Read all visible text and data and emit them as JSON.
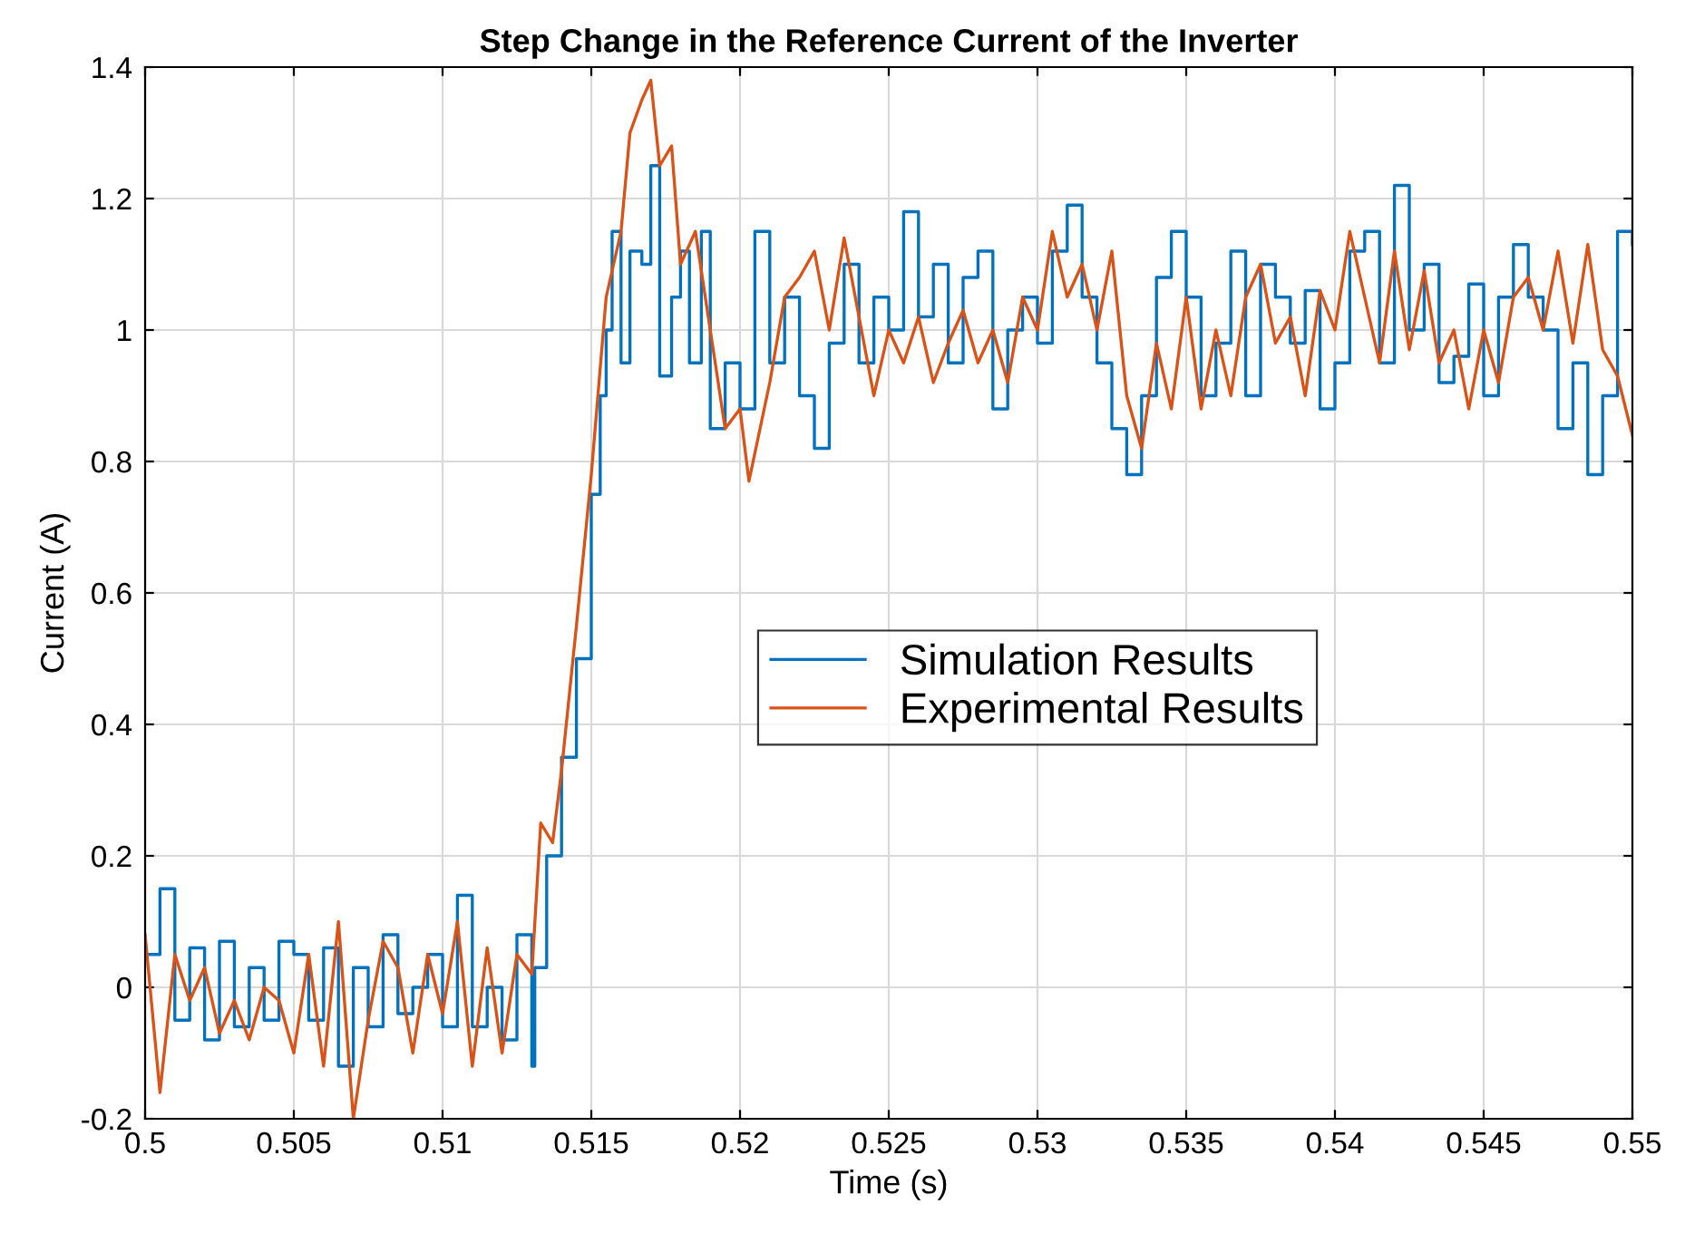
{
  "chart_data": {
    "type": "line",
    "title": "Step Change in the Reference Current of the Inverter",
    "xlabel": "Time (s)",
    "ylabel": "Current (A)",
    "xlim": [
      0.5,
      0.55
    ],
    "ylim": [
      -0.2,
      1.4
    ],
    "xticks": [
      0.5,
      0.505,
      0.51,
      0.515,
      0.52,
      0.525,
      0.53,
      0.535,
      0.54,
      0.545,
      0.55
    ],
    "yticks": [
      -0.2,
      0,
      0.2,
      0.4,
      0.6,
      0.8,
      1,
      1.2,
      1.4
    ],
    "grid": true,
    "legend": "right",
    "marker": "none",
    "line_style": "solid",
    "series": [
      {
        "name": "Simulation Results",
        "type": "step",
        "color": "#0072bd",
        "x": [
          0.5,
          0.5005,
          0.501,
          0.5015,
          0.502,
          0.5025,
          0.503,
          0.5035,
          0.504,
          0.5045,
          0.505,
          0.5055,
          0.506,
          0.5065,
          0.507,
          0.5075,
          0.508,
          0.5085,
          0.509,
          0.5095,
          0.51,
          0.5105,
          0.511,
          0.5115,
          0.512,
          0.5125,
          0.513,
          0.5131,
          0.5135,
          0.514,
          0.5145,
          0.515,
          0.5153,
          0.5155,
          0.5157,
          0.516,
          0.5163,
          0.5167,
          0.517,
          0.5173,
          0.5177,
          0.518,
          0.5183,
          0.5187,
          0.519,
          0.5195,
          0.52,
          0.5205,
          0.521,
          0.5215,
          0.522,
          0.5225,
          0.523,
          0.5235,
          0.524,
          0.5245,
          0.525,
          0.5255,
          0.526,
          0.5265,
          0.527,
          0.5275,
          0.528,
          0.5285,
          0.529,
          0.5295,
          0.53,
          0.5305,
          0.531,
          0.5315,
          0.532,
          0.5325,
          0.533,
          0.5335,
          0.534,
          0.5345,
          0.535,
          0.5355,
          0.536,
          0.5365,
          0.537,
          0.5375,
          0.538,
          0.5385,
          0.539,
          0.5395,
          0.54,
          0.5405,
          0.541,
          0.5415,
          0.542,
          0.5425,
          0.543,
          0.5435,
          0.544,
          0.5445,
          0.545,
          0.5455,
          0.546,
          0.5465,
          0.547,
          0.5475,
          0.548,
          0.5485,
          0.549,
          0.5495,
          0.55
        ],
        "values": [
          0.05,
          0.15,
          -0.05,
          0.06,
          -0.08,
          0.07,
          -0.06,
          0.03,
          -0.05,
          0.07,
          0.05,
          -0.05,
          0.06,
          -0.12,
          0.03,
          -0.06,
          0.08,
          -0.04,
          0.0,
          0.05,
          -0.06,
          0.14,
          -0.06,
          0.0,
          -0.08,
          0.08,
          -0.12,
          0.03,
          0.2,
          0.35,
          0.5,
          0.75,
          0.9,
          1.0,
          1.15,
          0.95,
          1.12,
          1.1,
          1.25,
          0.93,
          1.05,
          1.12,
          0.95,
          1.15,
          0.85,
          0.95,
          0.88,
          1.15,
          0.95,
          1.05,
          0.9,
          0.82,
          0.98,
          1.1,
          0.95,
          1.05,
          1.0,
          1.18,
          1.02,
          1.1,
          0.95,
          1.08,
          1.12,
          0.88,
          1.0,
          1.05,
          0.98,
          1.12,
          1.19,
          1.05,
          0.95,
          0.85,
          0.78,
          0.9,
          1.08,
          1.15,
          1.05,
          0.9,
          0.98,
          1.12,
          0.9,
          1.1,
          1.05,
          0.98,
          1.06,
          0.88,
          0.95,
          1.12,
          1.15,
          0.95,
          1.22,
          1.0,
          1.1,
          0.92,
          0.96,
          1.07,
          0.9,
          1.05,
          1.13,
          1.05,
          1.0,
          0.85,
          0.95,
          0.78,
          0.9,
          1.15,
          1.13
        ]
      },
      {
        "name": "Experimental Results",
        "color": "#d95319",
        "x": [
          0.5,
          0.5005,
          0.501,
          0.5015,
          0.502,
          0.5025,
          0.503,
          0.5035,
          0.504,
          0.5045,
          0.505,
          0.5055,
          0.506,
          0.5065,
          0.507,
          0.5075,
          0.508,
          0.5085,
          0.509,
          0.5095,
          0.51,
          0.5105,
          0.511,
          0.5115,
          0.512,
          0.5125,
          0.513,
          0.5133,
          0.5137,
          0.514,
          0.5145,
          0.515,
          0.5155,
          0.516,
          0.5163,
          0.5167,
          0.517,
          0.5173,
          0.5177,
          0.518,
          0.5185,
          0.519,
          0.5195,
          0.52,
          0.5203,
          0.521,
          0.5215,
          0.522,
          0.5225,
          0.523,
          0.5235,
          0.524,
          0.5245,
          0.525,
          0.5255,
          0.526,
          0.5265,
          0.527,
          0.5275,
          0.528,
          0.5285,
          0.529,
          0.5295,
          0.53,
          0.5305,
          0.531,
          0.5315,
          0.532,
          0.5325,
          0.533,
          0.5335,
          0.534,
          0.5345,
          0.535,
          0.5355,
          0.536,
          0.5365,
          0.537,
          0.5375,
          0.538,
          0.5385,
          0.539,
          0.5395,
          0.54,
          0.5405,
          0.541,
          0.5415,
          0.542,
          0.5425,
          0.543,
          0.5435,
          0.544,
          0.5445,
          0.545,
          0.5455,
          0.546,
          0.5465,
          0.547,
          0.5475,
          0.548,
          0.5485,
          0.549,
          0.5495,
          0.55
        ],
        "values": [
          0.08,
          -0.16,
          0.05,
          -0.02,
          0.03,
          -0.07,
          -0.02,
          -0.08,
          0.0,
          -0.02,
          -0.1,
          0.05,
          -0.12,
          0.1,
          -0.2,
          -0.05,
          0.07,
          0.03,
          -0.1,
          0.05,
          -0.04,
          0.1,
          -0.12,
          0.06,
          -0.1,
          0.05,
          0.02,
          0.25,
          0.22,
          0.33,
          0.55,
          0.78,
          1.05,
          1.15,
          1.3,
          1.35,
          1.38,
          1.25,
          1.28,
          1.1,
          1.15,
          1.0,
          0.85,
          0.88,
          0.77,
          0.92,
          1.05,
          1.08,
          1.12,
          1.0,
          1.14,
          1.02,
          0.9,
          1.0,
          0.95,
          1.02,
          0.92,
          0.98,
          1.03,
          0.95,
          1.0,
          0.92,
          1.05,
          1.0,
          1.15,
          1.05,
          1.1,
          1.0,
          1.12,
          0.9,
          0.82,
          0.98,
          0.88,
          1.05,
          0.88,
          1.0,
          0.9,
          1.05,
          1.1,
          0.98,
          1.02,
          0.9,
          1.06,
          1.0,
          1.15,
          1.05,
          0.95,
          1.12,
          0.97,
          1.09,
          0.95,
          1.0,
          0.88,
          1.0,
          0.92,
          1.05,
          1.08,
          1.0,
          1.12,
          0.98,
          1.13,
          0.97,
          0.93,
          0.84
        ]
      }
    ]
  }
}
